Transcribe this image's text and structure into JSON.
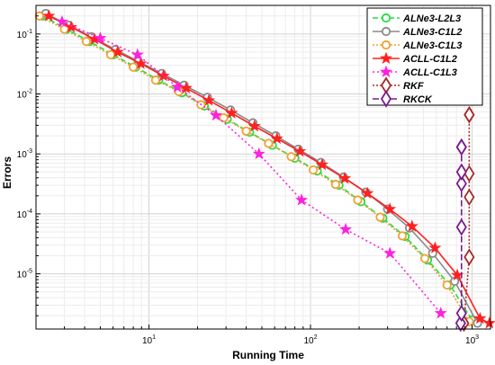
{
  "chart_data": {
    "type": "line",
    "xlabel": "Running Time",
    "ylabel": "Errors",
    "xscale": "log",
    "yscale": "log",
    "xlim": [
      2,
      1300
    ],
    "ylim": [
      1.2e-06,
      0.3
    ],
    "x_ticks": [
      {
        "value": 10,
        "base": "10",
        "exp": "1"
      },
      {
        "value": 100,
        "base": "10",
        "exp": "2"
      },
      {
        "value": 1000,
        "base": "10",
        "exp": "3"
      }
    ],
    "y_ticks": [
      {
        "value": 1e-05,
        "base": "10",
        "exp": "-5"
      },
      {
        "value": 0.0001,
        "base": "10",
        "exp": "-4"
      },
      {
        "value": 0.001,
        "base": "10",
        "exp": "-3"
      },
      {
        "value": 0.01,
        "base": "10",
        "exp": "-2"
      },
      {
        "value": 0.1,
        "base": "10",
        "exp": "-1"
      }
    ],
    "grid": true,
    "legend_position": "top-right",
    "series": [
      {
        "name": "ALNe3-L2L3",
        "color": "#22dd44",
        "dash": "6,3",
        "marker": "circle",
        "x": [
          2.2,
          3.1,
          4.3,
          6,
          8.3,
          11.5,
          16,
          22,
          30.5,
          42,
          58,
          80,
          110,
          150,
          205,
          280,
          385,
          530,
          730,
          1000
        ],
        "y": [
          0.2,
          0.12,
          0.075,
          0.045,
          0.028,
          0.017,
          0.0105,
          0.0063,
          0.0038,
          0.0023,
          0.0014,
          0.00085,
          0.00052,
          0.0003,
          0.00016,
          8.5e-05,
          4.2e-05,
          1.7e-05,
          6.5e-06,
          1.7e-06
        ]
      },
      {
        "name": "ALNe3-C1L2",
        "color": "#8a8a8a",
        "dash": "",
        "marker": "circle",
        "x": [
          2.3,
          3.2,
          4.4,
          6.2,
          8.6,
          12,
          16.5,
          23,
          32,
          44,
          61,
          84,
          116,
          160,
          220,
          300,
          410,
          570,
          780,
          1080
        ],
        "y": [
          0.22,
          0.14,
          0.09,
          0.055,
          0.035,
          0.022,
          0.014,
          0.0088,
          0.0054,
          0.0033,
          0.002,
          0.0012,
          0.00072,
          0.00041,
          0.00023,
          0.00012,
          5.8e-05,
          2.2e-05,
          7.5e-06,
          1.5e-06
        ]
      },
      {
        "name": "ALNe3-C1L3",
        "color": "#f0a030",
        "dash": "2,2",
        "marker": "circle",
        "x": [
          2.1,
          3,
          4.1,
          5.8,
          8,
          11,
          15.3,
          21,
          29,
          40,
          55,
          76,
          104,
          143,
          196,
          270,
          370,
          510,
          700,
          960
        ],
        "y": [
          0.2,
          0.12,
          0.075,
          0.045,
          0.028,
          0.017,
          0.011,
          0.0066,
          0.004,
          0.0024,
          0.0015,
          0.0009,
          0.00054,
          0.00031,
          0.00017,
          8.8e-05,
          4.3e-05,
          1.8e-05,
          6.5e-06,
          1.6e-06
        ]
      },
      {
        "name": "ACLL-C1L2",
        "color": "#ff2020",
        "dash": "",
        "marker": "star",
        "x": [
          2.4,
          3.3,
          4.6,
          6.4,
          8.9,
          12.3,
          17,
          23.5,
          32.5,
          45,
          62,
          86,
          118,
          163,
          225,
          310,
          425,
          590,
          810,
          1120,
          1280
        ],
        "y": [
          0.2,
          0.13,
          0.082,
          0.05,
          0.032,
          0.02,
          0.0125,
          0.0078,
          0.0048,
          0.0029,
          0.0018,
          0.0011,
          0.00066,
          0.00039,
          0.00022,
          0.00012,
          6.2e-05,
          2.7e-05,
          9.5e-06,
          1.8e-06,
          1.5e-06
        ]
      },
      {
        "name": "ACLL-C1L3",
        "color": "#ff20e0",
        "dash": "2,3",
        "marker": "star",
        "x": [
          2.9,
          5,
          8.5,
          15,
          26,
          48,
          88,
          165,
          310,
          640
        ],
        "y": [
          0.16,
          0.085,
          0.045,
          0.013,
          0.0044,
          0.001,
          0.00017,
          5.5e-05,
          2.2e-05,
          2.2e-06
        ]
      },
      {
        "name": "RKF",
        "color": "#a52a2a",
        "dash": "2,2",
        "marker": "diamond",
        "x": [
          890,
          960,
          960,
          960,
          960,
          960
        ],
        "y": [
          1.5e-06,
          1.9e-05,
          0.00019,
          0.00047,
          0.0045,
          0.0045
        ]
      },
      {
        "name": "RKCK",
        "color": "#7a1a8a",
        "dash": "7,3",
        "marker": "diamond",
        "x": [
          850,
          860,
          860,
          860,
          860,
          860,
          860
        ],
        "y": [
          1.5e-06,
          2.2e-06,
          6e-05,
          0.00032,
          0.0005,
          0.0013,
          0.0013
        ]
      }
    ]
  }
}
